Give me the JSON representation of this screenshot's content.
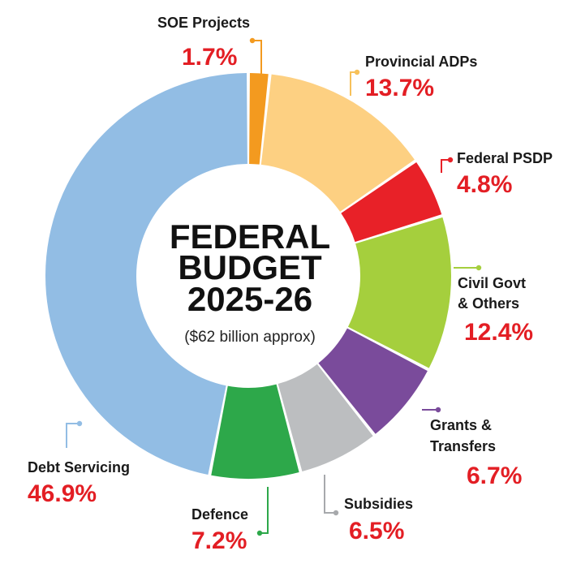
{
  "chart_data": {
    "type": "pie",
    "title": [
      "FEDERAL",
      "BUDGET",
      "2025-26"
    ],
    "subtitle": "($62 billion approx)",
    "slices": [
      {
        "name": "SOE Projects",
        "value": 1.7,
        "label": "1.7%",
        "color": "#f39a1f",
        "leader_color": "#f39a1f"
      },
      {
        "name": "Provincial ADPs",
        "value": 13.7,
        "label": "13.7%",
        "color": "#fdd082",
        "leader_color": "#f7c15a"
      },
      {
        "name": "Federal PSDP",
        "value": 4.8,
        "label": "4.8%",
        "color": "#e82128",
        "leader_color": "#e82128"
      },
      {
        "name": "Civil Govt & Others",
        "name_lines": [
          "Civil Govt",
          "& Others"
        ],
        "value": 12.4,
        "label": "12.4%",
        "color": "#a5cf3d",
        "leader_color": "#a5cf3d"
      },
      {
        "name": "Grants & Transfers",
        "name_lines": [
          "Grants &",
          "Transfers"
        ],
        "value": 6.7,
        "label": "6.7%",
        "color": "#7a4b9b",
        "leader_color": "#7a4b9b"
      },
      {
        "name": "Subsidies",
        "value": 6.5,
        "label": "6.5%",
        "color": "#bcbec0",
        "leader_color": "#a7a9ac"
      },
      {
        "name": "Defence",
        "value": 7.2,
        "label": "7.2%",
        "color": "#2da84a",
        "leader_color": "#2da84a"
      },
      {
        "name": "Debt Servicing",
        "value": 46.9,
        "label": "46.9%",
        "color": "#92bde4",
        "leader_color": "#92bde4"
      }
    ]
  }
}
